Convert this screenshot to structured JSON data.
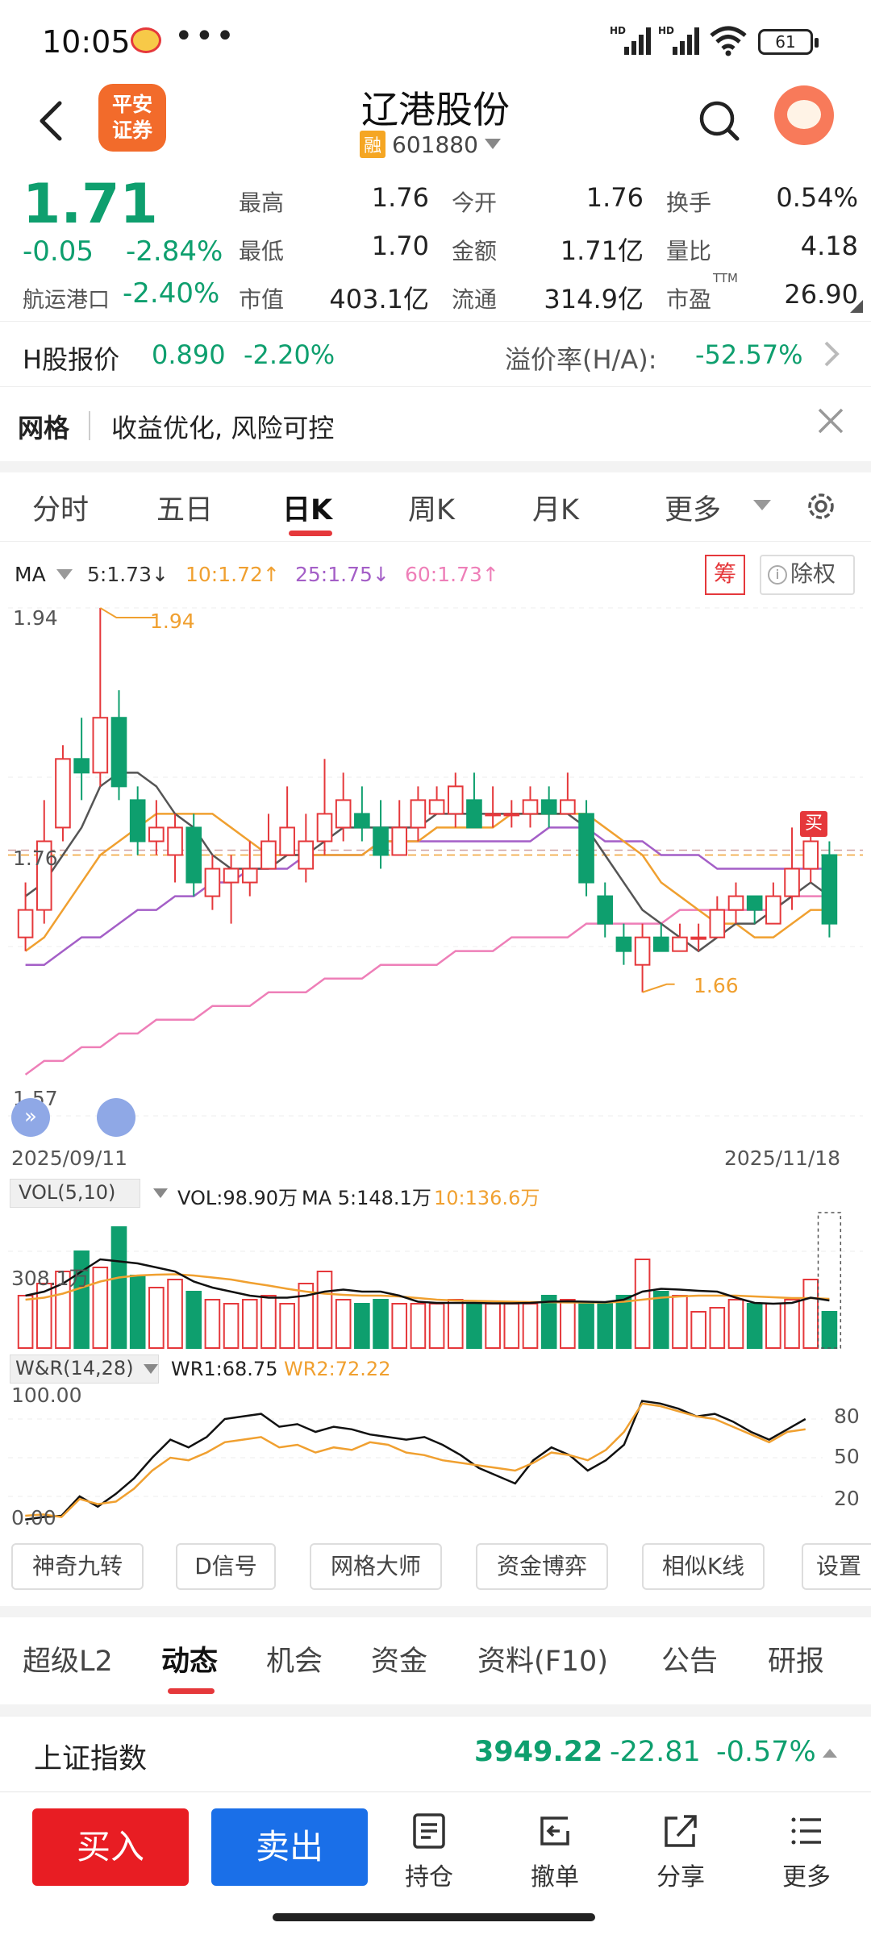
{
  "status_bar": {
    "time": "10:05",
    "dots": "•••",
    "battery": "61",
    "icons": [
      "weibo-icon",
      "hd-signal-icon",
      "hd-signal-icon",
      "wifi-icon",
      "battery-icon"
    ]
  },
  "header": {
    "logo_text_1": "平安",
    "logo_text_2": "证券",
    "stock_name": "辽港股份",
    "margin_badge": "融",
    "stock_code": "601880"
  },
  "quote": {
    "price": "1.71",
    "change": "-0.05",
    "change_pct": "-2.84%",
    "sector_name": "航运港口",
    "sector_pct": "-2.40%",
    "fields": {
      "high_label": "最高",
      "high": "1.76",
      "low_label": "最低",
      "low": "1.70",
      "mktcap_label": "市值",
      "mktcap": "403.1亿",
      "open_label": "今开",
      "open": "1.76",
      "amount_label": "金额",
      "amount": "1.71亿",
      "float_label": "流通",
      "float": "314.9亿",
      "turnover_label": "换手",
      "turnover": "0.54%",
      "volratio_label": "量比",
      "volratio": "4.18",
      "pe_label": "市盈",
      "pe_sup": "TTM",
      "pe": "26.90"
    }
  },
  "hshare": {
    "label": "H股报价",
    "price": "0.890",
    "pct": "-2.20%",
    "premium_label": "溢价率(H/A):",
    "premium": "-52.57%"
  },
  "grid_banner": {
    "title": "网格",
    "text": "收益优化, 风险可控"
  },
  "period_tabs": [
    "分时",
    "五日",
    "日K",
    "周K",
    "月K",
    "更多"
  ],
  "ma_row": {
    "label": "MA",
    "ma5": "5:1.73↓",
    "ma10": "10:1.72↑",
    "ma25": "25:1.75↓",
    "ma60": "60:1.73↑",
    "chou": "筹",
    "fuquan": "除权",
    "info": "i"
  },
  "colors": {
    "up": "#e5383b",
    "down": "#0e9f6e",
    "ma5": "#555555",
    "ma10": "#f0a030",
    "ma25": "#a45fc7",
    "ma60": "#ee7fb8"
  },
  "kchart": {
    "y_top": "1.94",
    "y_mid": "1.76",
    "y_bottom": "1.57",
    "high_label": "1.94",
    "low_label": "1.66",
    "buy_label": "买",
    "date_start": "2025/09/11",
    "date_end": "2025/11/18"
  },
  "chart_data": {
    "type": "candlestick",
    "y_range": [
      1.57,
      1.94
    ],
    "candles": [
      {
        "o": 1.7,
        "c": 1.72,
        "h": 1.74,
        "l": 1.69
      },
      {
        "o": 1.72,
        "c": 1.77,
        "h": 1.8,
        "l": 1.71
      },
      {
        "o": 1.78,
        "c": 1.83,
        "h": 1.84,
        "l": 1.77
      },
      {
        "o": 1.83,
        "c": 1.82,
        "h": 1.86,
        "l": 1.8
      },
      {
        "o": 1.82,
        "c": 1.86,
        "h": 1.94,
        "l": 1.81
      },
      {
        "o": 1.86,
        "c": 1.81,
        "h": 1.88,
        "l": 1.8
      },
      {
        "o": 1.8,
        "c": 1.77,
        "h": 1.81,
        "l": 1.76
      },
      {
        "o": 1.77,
        "c": 1.78,
        "h": 1.8,
        "l": 1.76
      },
      {
        "o": 1.76,
        "c": 1.78,
        "h": 1.79,
        "l": 1.74
      },
      {
        "o": 1.78,
        "c": 1.74,
        "h": 1.79,
        "l": 1.73
      },
      {
        "o": 1.73,
        "c": 1.75,
        "h": 1.76,
        "l": 1.72
      },
      {
        "o": 1.74,
        "c": 1.75,
        "h": 1.76,
        "l": 1.71
      },
      {
        "o": 1.74,
        "c": 1.75,
        "h": 1.77,
        "l": 1.73
      },
      {
        "o": 1.75,
        "c": 1.77,
        "h": 1.79,
        "l": 1.75
      },
      {
        "o": 1.76,
        "c": 1.78,
        "h": 1.81,
        "l": 1.76
      },
      {
        "o": 1.75,
        "c": 1.77,
        "h": 1.79,
        "l": 1.74
      },
      {
        "o": 1.77,
        "c": 1.79,
        "h": 1.83,
        "l": 1.76
      },
      {
        "o": 1.78,
        "c": 1.8,
        "h": 1.82,
        "l": 1.77
      },
      {
        "o": 1.79,
        "c": 1.78,
        "h": 1.81,
        "l": 1.77
      },
      {
        "o": 1.78,
        "c": 1.76,
        "h": 1.8,
        "l": 1.75
      },
      {
        "o": 1.76,
        "c": 1.78,
        "h": 1.8,
        "l": 1.76
      },
      {
        "o": 1.78,
        "c": 1.8,
        "h": 1.81,
        "l": 1.77
      },
      {
        "o": 1.79,
        "c": 1.8,
        "h": 1.81,
        "l": 1.79
      },
      {
        "o": 1.79,
        "c": 1.81,
        "h": 1.82,
        "l": 1.78
      },
      {
        "o": 1.8,
        "c": 1.78,
        "h": 1.82,
        "l": 1.78
      },
      {
        "o": 1.79,
        "c": 1.79,
        "h": 1.81,
        "l": 1.78
      },
      {
        "o": 1.79,
        "c": 1.79,
        "h": 1.8,
        "l": 1.78
      },
      {
        "o": 1.79,
        "c": 1.8,
        "h": 1.81,
        "l": 1.78
      },
      {
        "o": 1.8,
        "c": 1.79,
        "h": 1.81,
        "l": 1.78
      },
      {
        "o": 1.79,
        "c": 1.8,
        "h": 1.82,
        "l": 1.79
      },
      {
        "o": 1.79,
        "c": 1.74,
        "h": 1.8,
        "l": 1.73
      },
      {
        "o": 1.73,
        "c": 1.71,
        "h": 1.74,
        "l": 1.7
      },
      {
        "o": 1.7,
        "c": 1.69,
        "h": 1.71,
        "l": 1.68
      },
      {
        "o": 1.68,
        "c": 1.7,
        "h": 1.71,
        "l": 1.66
      },
      {
        "o": 1.7,
        "c": 1.69,
        "h": 1.71,
        "l": 1.69
      },
      {
        "o": 1.69,
        "c": 1.7,
        "h": 1.71,
        "l": 1.69
      },
      {
        "o": 1.7,
        "c": 1.7,
        "h": 1.71,
        "l": 1.69
      },
      {
        "o": 1.7,
        "c": 1.72,
        "h": 1.73,
        "l": 1.7
      },
      {
        "o": 1.72,
        "c": 1.73,
        "h": 1.74,
        "l": 1.71
      },
      {
        "o": 1.73,
        "c": 1.72,
        "h": 1.73,
        "l": 1.71
      },
      {
        "o": 1.71,
        "c": 1.73,
        "h": 1.74,
        "l": 1.71
      },
      {
        "o": 1.73,
        "c": 1.75,
        "h": 1.78,
        "l": 1.72
      },
      {
        "o": 1.75,
        "c": 1.77,
        "h": 1.79,
        "l": 1.74
      },
      {
        "o": 1.76,
        "c": 1.71,
        "h": 1.77,
        "l": 1.7
      }
    ],
    "ma5": [
      1.73,
      1.74,
      1.76,
      1.78,
      1.81,
      1.82,
      1.82,
      1.81,
      1.79,
      1.78,
      1.76,
      1.75,
      1.75,
      1.75,
      1.76,
      1.76,
      1.77,
      1.78,
      1.78,
      1.78,
      1.78,
      1.78,
      1.79,
      1.79,
      1.79,
      1.79,
      1.79,
      1.79,
      1.79,
      1.79,
      1.78,
      1.76,
      1.74,
      1.72,
      1.71,
      1.7,
      1.69,
      1.7,
      1.71,
      1.71,
      1.72,
      1.73,
      1.74,
      1.73
    ],
    "ma10": [
      1.69,
      1.7,
      1.72,
      1.74,
      1.76,
      1.77,
      1.78,
      1.79,
      1.79,
      1.79,
      1.79,
      1.78,
      1.77,
      1.76,
      1.76,
      1.76,
      1.76,
      1.76,
      1.76,
      1.77,
      1.77,
      1.77,
      1.78,
      1.78,
      1.78,
      1.78,
      1.79,
      1.79,
      1.79,
      1.79,
      1.79,
      1.78,
      1.77,
      1.76,
      1.74,
      1.73,
      1.72,
      1.71,
      1.71,
      1.7,
      1.7,
      1.71,
      1.72,
      1.72
    ],
    "ma25": [
      1.68,
      1.68,
      1.69,
      1.7,
      1.7,
      1.71,
      1.72,
      1.72,
      1.73,
      1.73,
      1.74,
      1.74,
      1.75,
      1.75,
      1.75,
      1.76,
      1.76,
      1.76,
      1.76,
      1.77,
      1.77,
      1.77,
      1.77,
      1.77,
      1.77,
      1.77,
      1.77,
      1.77,
      1.78,
      1.78,
      1.78,
      1.77,
      1.77,
      1.77,
      1.76,
      1.76,
      1.76,
      1.75,
      1.75,
      1.75,
      1.75,
      1.75,
      1.75,
      1.75
    ],
    "ma60": [
      1.6,
      1.61,
      1.61,
      1.62,
      1.62,
      1.63,
      1.63,
      1.64,
      1.64,
      1.64,
      1.65,
      1.65,
      1.65,
      1.66,
      1.66,
      1.66,
      1.67,
      1.67,
      1.67,
      1.68,
      1.68,
      1.68,
      1.68,
      1.69,
      1.69,
      1.69,
      1.7,
      1.7,
      1.7,
      1.7,
      1.71,
      1.71,
      1.71,
      1.71,
      1.71,
      1.72,
      1.72,
      1.72,
      1.72,
      1.72,
      1.72,
      1.73,
      1.73,
      1.73
    ],
    "last_close": 1.76,
    "volume": {
      "y_label": "308.1万",
      "values": [
        130,
        160,
        190,
        240,
        200,
        300,
        180,
        150,
        170,
        140,
        120,
        110,
        120,
        130,
        110,
        160,
        190,
        120,
        110,
        120,
        110,
        110,
        110,
        120,
        110,
        110,
        110,
        110,
        130,
        120,
        110,
        110,
        130,
        220,
        140,
        130,
        90,
        100,
        120,
        110,
        110,
        120,
        170,
        90
      ],
      "ma5": [
        130,
        140,
        160,
        190,
        220,
        215,
        210,
        200,
        190,
        165,
        150,
        140,
        130,
        125,
        125,
        130,
        140,
        145,
        140,
        140,
        130,
        115,
        112,
        112,
        112,
        111,
        111,
        112,
        115,
        116,
        115,
        114,
        120,
        140,
        147,
        145,
        142,
        140,
        125,
        112,
        110,
        112,
        125,
        118
      ],
      "ma10": [
        120,
        125,
        135,
        150,
        165,
        175,
        180,
        182,
        183,
        180,
        175,
        170,
        162,
        155,
        147,
        140,
        135,
        132,
        130,
        130,
        128,
        124,
        120,
        118,
        117,
        116,
        115,
        114,
        114,
        113,
        113,
        113,
        115,
        120,
        125,
        128,
        130,
        130,
        130,
        128,
        126,
        124,
        124,
        122
      ]
    },
    "wr": {
      "y_top": "100.00",
      "y_bottom": "0.00",
      "r_top": "80",
      "r_mid": "50",
      "r_bot": "20",
      "wr1": [
        2,
        4,
        5,
        20,
        12,
        22,
        34,
        50,
        64,
        58,
        66,
        80,
        82,
        84,
        74,
        76,
        70,
        74,
        72,
        68,
        66,
        64,
        66,
        60,
        52,
        42,
        36,
        30,
        48,
        58,
        52,
        40,
        48,
        60,
        94,
        92,
        88,
        82,
        84,
        78,
        70,
        64,
        72,
        80
      ],
      "wr2": [
        5,
        6,
        4,
        18,
        14,
        16,
        26,
        40,
        50,
        48,
        54,
        62,
        64,
        66,
        58,
        60,
        54,
        58,
        56,
        62,
        60,
        54,
        52,
        48,
        46,
        44,
        42,
        40,
        46,
        54,
        52,
        48,
        56,
        70,
        92,
        90,
        86,
        82,
        80,
        74,
        68,
        62,
        70,
        72
      ]
    }
  },
  "vol_header": {
    "label": "VOL(5,10)",
    "vol": "VOL:98.90万",
    "ma5": "MA 5:148.1万",
    "ma10": "10:136.6万"
  },
  "wr_header": {
    "label": "W&R(14,28)",
    "wr1": "WR1:68.75",
    "wr2": "WR2:72.22"
  },
  "tools": [
    "神奇九转",
    "D信号",
    "网格大师",
    "资金博弈",
    "相似K线",
    "设置"
  ],
  "section_tabs": [
    "超级L2",
    "动态",
    "机会",
    "资金",
    "资料(F10)",
    "公告",
    "研报"
  ],
  "index_row": {
    "name": "上证指数",
    "value": "3949.22",
    "change": "-22.81",
    "pct": "-0.57%"
  },
  "bottom_bar": {
    "buy": "买入",
    "sell": "卖出",
    "position": "持仓",
    "cancel": "撤单",
    "share": "分享",
    "more": "更多"
  }
}
